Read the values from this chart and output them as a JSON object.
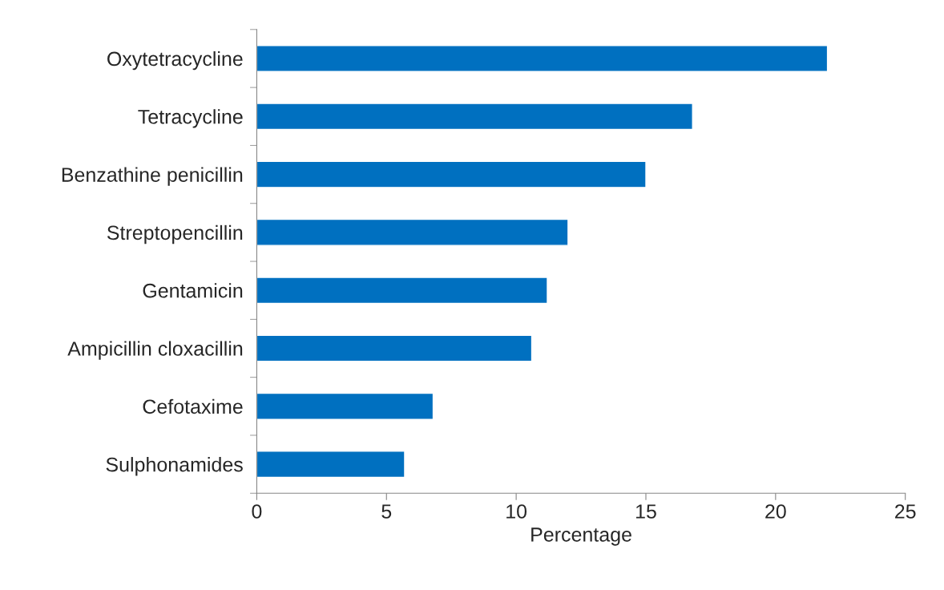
{
  "chart_data": {
    "type": "bar",
    "orientation": "horizontal",
    "xlabel": "Percentage",
    "categories": [
      "Oxytetracycline",
      "Tetracycline",
      "Benzathine penicillin",
      "Streptopencillin",
      "Gentamicin",
      "Ampicillin cloxacillin",
      "Cefotaxime",
      "Sulphonamides"
    ],
    "values": [
      22.0,
      16.8,
      15.0,
      12.0,
      11.2,
      10.6,
      6.8,
      5.7
    ],
    "color": "#0070c0",
    "xlim": [
      0,
      25
    ],
    "xticks": [
      0,
      5,
      10,
      15,
      20,
      25
    ],
    "grid": false,
    "legend": false
  }
}
